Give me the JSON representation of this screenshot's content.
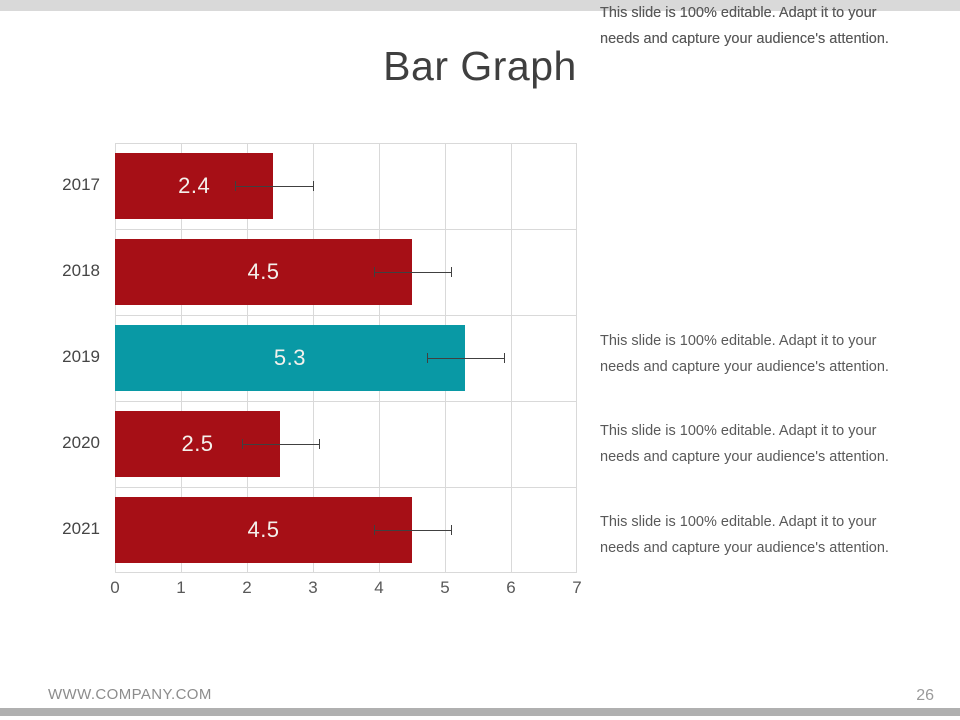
{
  "slide": {
    "title": "Bar Graph",
    "footer": {
      "website": "WWW.COMPANY.COM",
      "page_number": "26"
    }
  },
  "chart_data": {
    "type": "bar",
    "orientation": "horizontal",
    "title": "Bar Graph",
    "categories": [
      "2017",
      "2018",
      "2019",
      "2020",
      "2021"
    ],
    "values": [
      2.4,
      4.5,
      5.3,
      2.5,
      4.5
    ],
    "value_labels": [
      "2.4",
      "4.5",
      "5.3",
      "2.5",
      "4.5"
    ],
    "errors": [
      0.58,
      0.58,
      0.58,
      0.58,
      0.58
    ],
    "bar_colors": [
      "#a60f16",
      "#a60f16",
      "#0999a5",
      "#a60f16",
      "#a60f16"
    ],
    "value_label_color": "#f4f1ec",
    "xlim": [
      0,
      7
    ],
    "x_ticks": [
      "0",
      "1",
      "2",
      "3",
      "4",
      "5",
      "6",
      "7"
    ],
    "grid": true,
    "gridline_color": "#d9d9d9",
    "error_bar_color": "#404040",
    "xlabel": "",
    "ylabel": "",
    "legend": false
  },
  "annotations": {
    "full_text": "This slide is 100% editable. Adapt it to your needs and capture your audience's attention.",
    "lines": [
      "This slide is 100% editable. Adapt it to your",
      "needs and capture your audience's attention."
    ],
    "count": 5
  },
  "colors": {
    "top_strip": "#d9d9d9",
    "bottom_strip": "#b0b0b0",
    "title_text": "#3f3f3f",
    "body_text": "#595959",
    "footer_text": "#8c8c8c"
  }
}
